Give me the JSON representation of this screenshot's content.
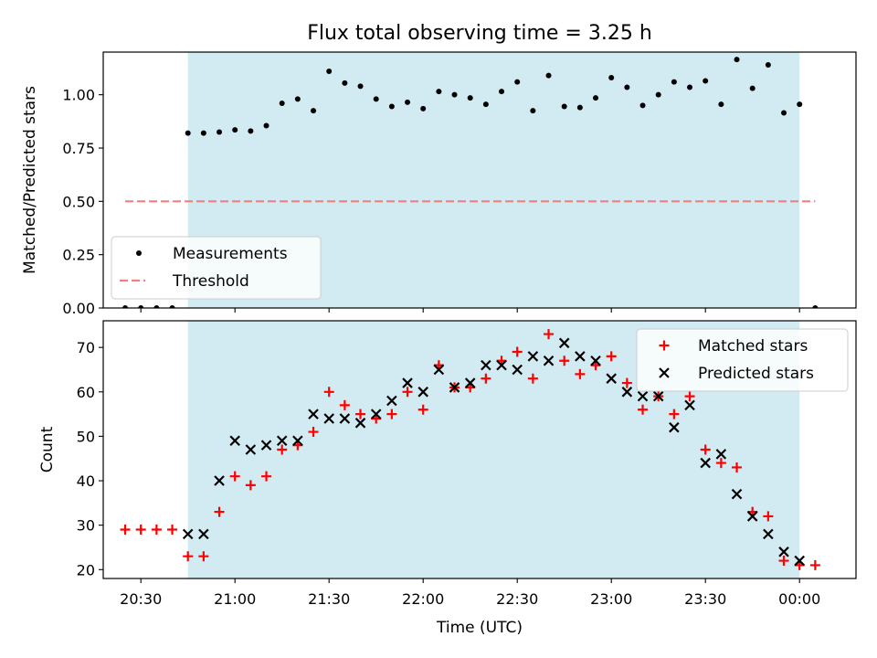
{
  "chart_data": {
    "title": "Flux total observing time = 3.25 h",
    "xlabel": "Time (UTC)",
    "x_unit": "time of night (UTC)",
    "xlim": [
      "20:18",
      "00:18"
    ],
    "x_ticks": [
      "20:30",
      "21:00",
      "21:30",
      "22:00",
      "22:30",
      "23:00",
      "23:30",
      "00:00"
    ],
    "shaded_span": {
      "start": "20:45",
      "end": "00:00",
      "color": "#add8e6"
    },
    "panels": [
      {
        "type": "scatter",
        "ylabel": "Matched/Predicted stars",
        "ylim": [
          0,
          1.2
        ],
        "y_ticks": [
          "0.00",
          "0.25",
          "0.50",
          "0.75",
          "1.00"
        ],
        "legend_position": "lower-left",
        "series": [
          {
            "name": "Measurements",
            "kind": "scatter",
            "marker": "dot",
            "color": "#000000",
            "points": [
              [
                "20:25",
                0
              ],
              [
                "20:30",
                0
              ],
              [
                "20:35",
                0
              ],
              [
                "20:40",
                0
              ],
              [
                "20:45",
                0.82
              ],
              [
                "20:50",
                0.82
              ],
              [
                "20:55",
                0.825
              ],
              [
                "21:00",
                0.835
              ],
              [
                "21:05",
                0.83
              ],
              [
                "21:10",
                0.855
              ],
              [
                "21:15",
                0.96
              ],
              [
                "21:20",
                0.98
              ],
              [
                "21:25",
                0.925
              ],
              [
                "21:30",
                1.11
              ],
              [
                "21:35",
                1.055
              ],
              [
                "21:40",
                1.04
              ],
              [
                "21:45",
                0.98
              ],
              [
                "21:50",
                0.945
              ],
              [
                "21:55",
                0.965
              ],
              [
                "22:00",
                0.935
              ],
              [
                "22:05",
                1.015
              ],
              [
                "22:10",
                1.0
              ],
              [
                "22:15",
                0.985
              ],
              [
                "22:20",
                0.955
              ],
              [
                "22:25",
                1.015
              ],
              [
                "22:30",
                1.06
              ],
              [
                "22:35",
                0.925
              ],
              [
                "22:40",
                1.09
              ],
              [
                "22:45",
                0.945
              ],
              [
                "22:50",
                0.94
              ],
              [
                "22:55",
                0.985
              ],
              [
                "23:00",
                1.08
              ],
              [
                "23:05",
                1.035
              ],
              [
                "23:10",
                0.95
              ],
              [
                "23:15",
                1.0
              ],
              [
                "23:20",
                1.06
              ],
              [
                "23:25",
                1.035
              ],
              [
                "23:30",
                1.065
              ],
              [
                "23:35",
                0.955
              ],
              [
                "23:40",
                1.165
              ],
              [
                "23:45",
                1.03
              ],
              [
                "23:50",
                1.14
              ],
              [
                "23:55",
                0.915
              ],
              [
                "00:00",
                0.955
              ],
              [
                "00:05",
                0
              ]
            ]
          },
          {
            "name": "Threshold",
            "kind": "line",
            "style": "dashed",
            "color": "#f08080",
            "points": [
              [
                "20:25",
                0.5
              ],
              [
                "00:05",
                0.5
              ]
            ]
          }
        ]
      },
      {
        "type": "scatter",
        "ylabel": "Count",
        "ylim": [
          18,
          76
        ],
        "y_ticks": [
          "20",
          "30",
          "40",
          "50",
          "60",
          "70"
        ],
        "legend_position": "top-right",
        "series": [
          {
            "name": "Matched stars",
            "kind": "scatter",
            "marker": "plus",
            "color": "#ff0000",
            "points": [
              [
                "20:25",
                29
              ],
              [
                "20:30",
                29
              ],
              [
                "20:35",
                29
              ],
              [
                "20:40",
                29
              ],
              [
                "20:45",
                23
              ],
              [
                "20:50",
                23
              ],
              [
                "20:55",
                33
              ],
              [
                "21:00",
                41
              ],
              [
                "21:05",
                39
              ],
              [
                "21:10",
                41
              ],
              [
                "21:15",
                47
              ],
              [
                "21:20",
                48
              ],
              [
                "21:25",
                51
              ],
              [
                "21:30",
                60
              ],
              [
                "21:35",
                57
              ],
              [
                "21:40",
                55
              ],
              [
                "21:45",
                54
              ],
              [
                "21:50",
                55
              ],
              [
                "21:55",
                60
              ],
              [
                "22:00",
                56
              ],
              [
                "22:05",
                66
              ],
              [
                "22:10",
                61
              ],
              [
                "22:15",
                61
              ],
              [
                "22:20",
                63
              ],
              [
                "22:25",
                67
              ],
              [
                "22:30",
                69
              ],
              [
                "22:35",
                63
              ],
              [
                "22:40",
                73
              ],
              [
                "22:45",
                67
              ],
              [
                "22:50",
                64
              ],
              [
                "22:55",
                66
              ],
              [
                "23:00",
                68
              ],
              [
                "23:05",
                62
              ],
              [
                "23:10",
                56
              ],
              [
                "23:15",
                59
              ],
              [
                "23:20",
                55
              ],
              [
                "23:25",
                59
              ],
              [
                "23:30",
                47
              ],
              [
                "23:35",
                44
              ],
              [
                "23:40",
                43
              ],
              [
                "23:45",
                33
              ],
              [
                "23:50",
                32
              ],
              [
                "23:55",
                22
              ],
              [
                "00:00",
                21
              ],
              [
                "00:05",
                21
              ]
            ]
          },
          {
            "name": "Predicted stars",
            "kind": "scatter",
            "marker": "x",
            "color": "#000000",
            "points": [
              [
                "20:45",
                28
              ],
              [
                "20:50",
                28
              ],
              [
                "20:55",
                40
              ],
              [
                "21:00",
                49
              ],
              [
                "21:05",
                47
              ],
              [
                "21:10",
                48
              ],
              [
                "21:15",
                49
              ],
              [
                "21:20",
                49
              ],
              [
                "21:25",
                55
              ],
              [
                "21:30",
                54
              ],
              [
                "21:35",
                54
              ],
              [
                "21:40",
                53
              ],
              [
                "21:45",
                55
              ],
              [
                "21:50",
                58
              ],
              [
                "21:55",
                62
              ],
              [
                "22:00",
                60
              ],
              [
                "22:05",
                65
              ],
              [
                "22:10",
                61
              ],
              [
                "22:15",
                62
              ],
              [
                "22:20",
                66
              ],
              [
                "22:25",
                66
              ],
              [
                "22:30",
                65
              ],
              [
                "22:35",
                68
              ],
              [
                "22:40",
                67
              ],
              [
                "22:45",
                71
              ],
              [
                "22:50",
                68
              ],
              [
                "22:55",
                67
              ],
              [
                "23:00",
                63
              ],
              [
                "23:05",
                60
              ],
              [
                "23:10",
                59
              ],
              [
                "23:15",
                59
              ],
              [
                "23:20",
                52
              ],
              [
                "23:25",
                57
              ],
              [
                "23:30",
                44
              ],
              [
                "23:35",
                46
              ],
              [
                "23:40",
                37
              ],
              [
                "23:45",
                32
              ],
              [
                "23:50",
                28
              ],
              [
                "23:55",
                24
              ],
              [
                "00:00",
                22
              ]
            ]
          }
        ]
      }
    ]
  }
}
